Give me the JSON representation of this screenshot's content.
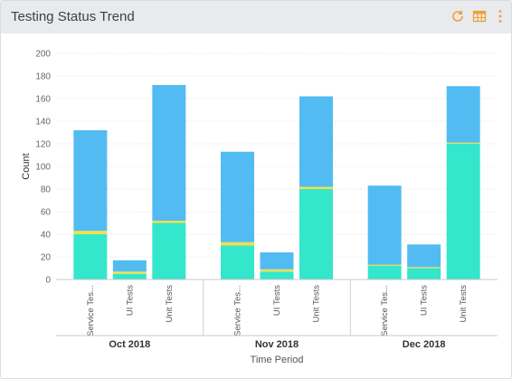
{
  "header": {
    "title": "Testing Status Trend",
    "icons": [
      "refresh-icon",
      "table-icon",
      "more-vertical-icon"
    ],
    "accent_color": "#f0a030"
  },
  "chart_data": {
    "type": "bar",
    "stacked": true,
    "title": "",
    "xlabel": "Time Period",
    "ylabel": "Count",
    "ylim": [
      0,
      200
    ],
    "yticks": [
      0,
      20,
      40,
      60,
      80,
      100,
      120,
      140,
      160,
      180,
      200
    ],
    "grid": true,
    "groups": [
      {
        "label": "Oct 2018",
        "categories": [
          "Service Tes...",
          "UI Tests",
          "Unit Tests"
        ]
      },
      {
        "label": "Nov 2018",
        "categories": [
          "Service Tes...",
          "UI Tests",
          "Unit Tests"
        ]
      },
      {
        "label": "Dec 2018",
        "categories": [
          "Service Tes...",
          "UI Tests",
          "Unit Tests"
        ]
      }
    ],
    "series_colors": [
      "#34e6cc",
      "#f2e04a",
      "#52bcf2"
    ],
    "series": [
      {
        "values": [
          40,
          5,
          50,
          30,
          7,
          80,
          12,
          10,
          120
        ]
      },
      {
        "values": [
          3,
          2,
          2,
          3,
          2,
          2,
          1,
          1,
          1
        ]
      },
      {
        "values": [
          89,
          10,
          120,
          80,
          15,
          80,
          70,
          20,
          50
        ]
      }
    ]
  }
}
